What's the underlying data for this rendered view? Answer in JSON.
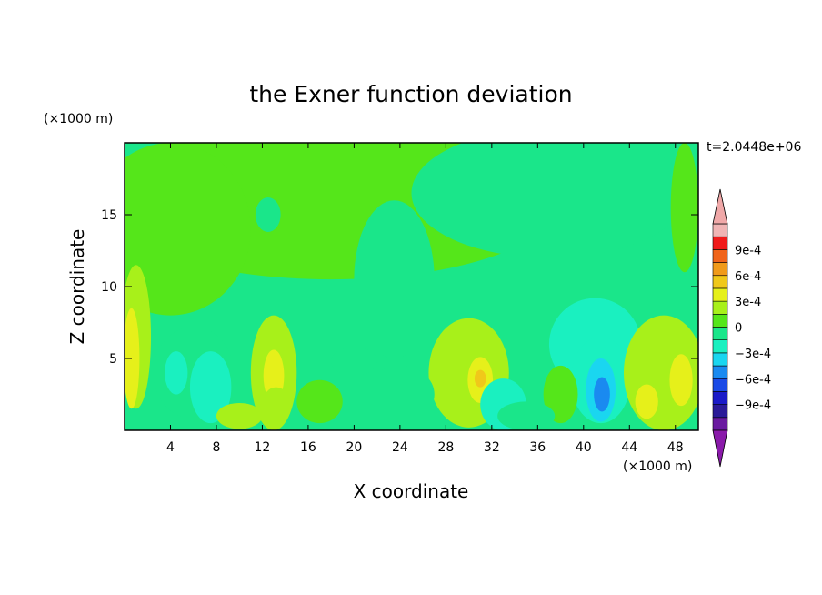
{
  "chart_data": {
    "type": "heatmap",
    "title": "the Exner function deviation",
    "xlabel": "X coordinate",
    "ylabel": "Z coordinate",
    "x_unit": "(×1000 m)",
    "y_unit": "(×1000 m)",
    "time_label": "t=2.0448e+06",
    "xlim": [
      0,
      50
    ],
    "ylim": [
      0,
      20
    ],
    "x_ticks": [
      4,
      8,
      12,
      16,
      20,
      24,
      28,
      32,
      36,
      40,
      44,
      48
    ],
    "y_ticks": [
      5,
      10,
      15
    ],
    "colorbar": {
      "levels": [
        -0.00105,
        -0.0009,
        -0.00075,
        -0.0006,
        -0.00045,
        -0.0003,
        -0.00015,
        0,
        0.00015,
        0.0003,
        0.00045,
        0.0006,
        0.00075,
        0.0009,
        0.00105
      ],
      "colors": [
        "#6a1aa0",
        "#2a1a98",
        "#1a1ac8",
        "#1a4ae6",
        "#1a8af0",
        "#1ad6f0",
        "#1af0c0",
        "#1ae68a",
        "#55e61a",
        "#a8f01a",
        "#e6f01a",
        "#f0c81a",
        "#f09a1a",
        "#f0641a",
        "#f01a1a",
        "#f0b4b4"
      ],
      "under_color": "#8a1aaa",
      "over_color": "#f0a8a8",
      "tick_labels": [
        "9e-4",
        "6e-4",
        "3e-4",
        "0",
        "−3e-4",
        "−6e-4",
        "−9e-4"
      ]
    },
    "background_level": 0,
    "features": [
      {
        "region": "upper band z>10",
        "value": 5e-05
      },
      {
        "region": "x 27-34, z 1-8",
        "value": 0.0003
      },
      {
        "region": "x 40-43, z 1-4",
        "value": -0.0006
      },
      {
        "region": "x 38-44, z 4-9",
        "value": -0.00025
      },
      {
        "region": "x 20-27, z 6-15",
        "value": -0.0001
      },
      {
        "region": "x 12-14, z 1-7",
        "value": 0.0002
      },
      {
        "region": "x 0-2, z 2-12",
        "value": 0.0002
      },
      {
        "region": "x 44-50, z 2-8",
        "value": 0.0002
      }
    ]
  }
}
